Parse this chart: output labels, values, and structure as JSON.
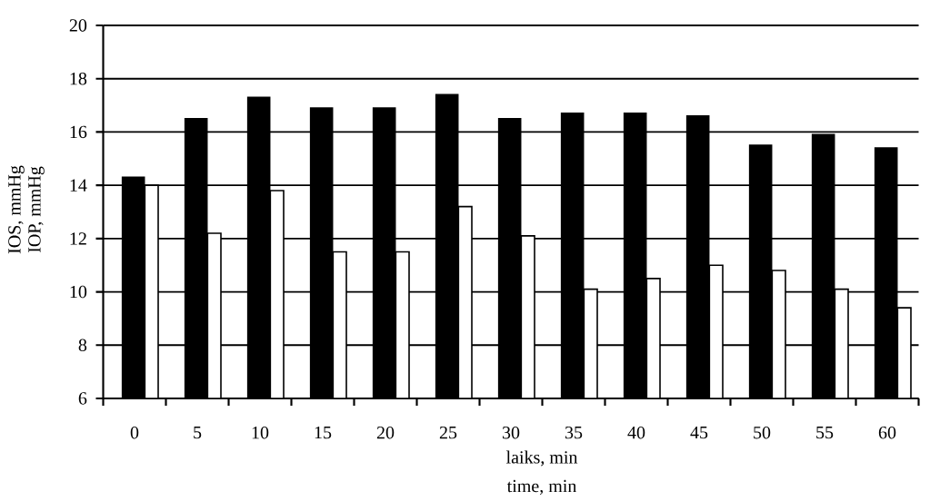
{
  "chart_data": {
    "type": "bar",
    "xlabel": "laiks, min",
    "ylabel": "IOP, mmHg",
    "annotations": [
      "IOS, mmHg",
      "time, min"
    ],
    "categories": [
      "0",
      "5",
      "10",
      "15",
      "20",
      "25",
      "30",
      "35",
      "40",
      "45",
      "50",
      "55",
      "60"
    ],
    "series": [
      {
        "color": "#000000",
        "values": [
          14.3,
          16.5,
          17.3,
          16.9,
          16.9,
          17.4,
          16.5,
          16.7,
          16.7,
          16.6,
          15.5,
          15.9,
          15.4
        ]
      },
      {
        "color": "#ffffff",
        "values": [
          14.0,
          12.2,
          13.8,
          11.5,
          11.5,
          13.2,
          12.1,
          10.1,
          10.5,
          11.0,
          10.8,
          10.1,
          9.4
        ]
      }
    ],
    "ylim": [
      6,
      20
    ],
    "yticks": [
      6,
      8,
      10,
      12,
      14,
      16,
      18,
      20
    ],
    "grid": "y"
  }
}
